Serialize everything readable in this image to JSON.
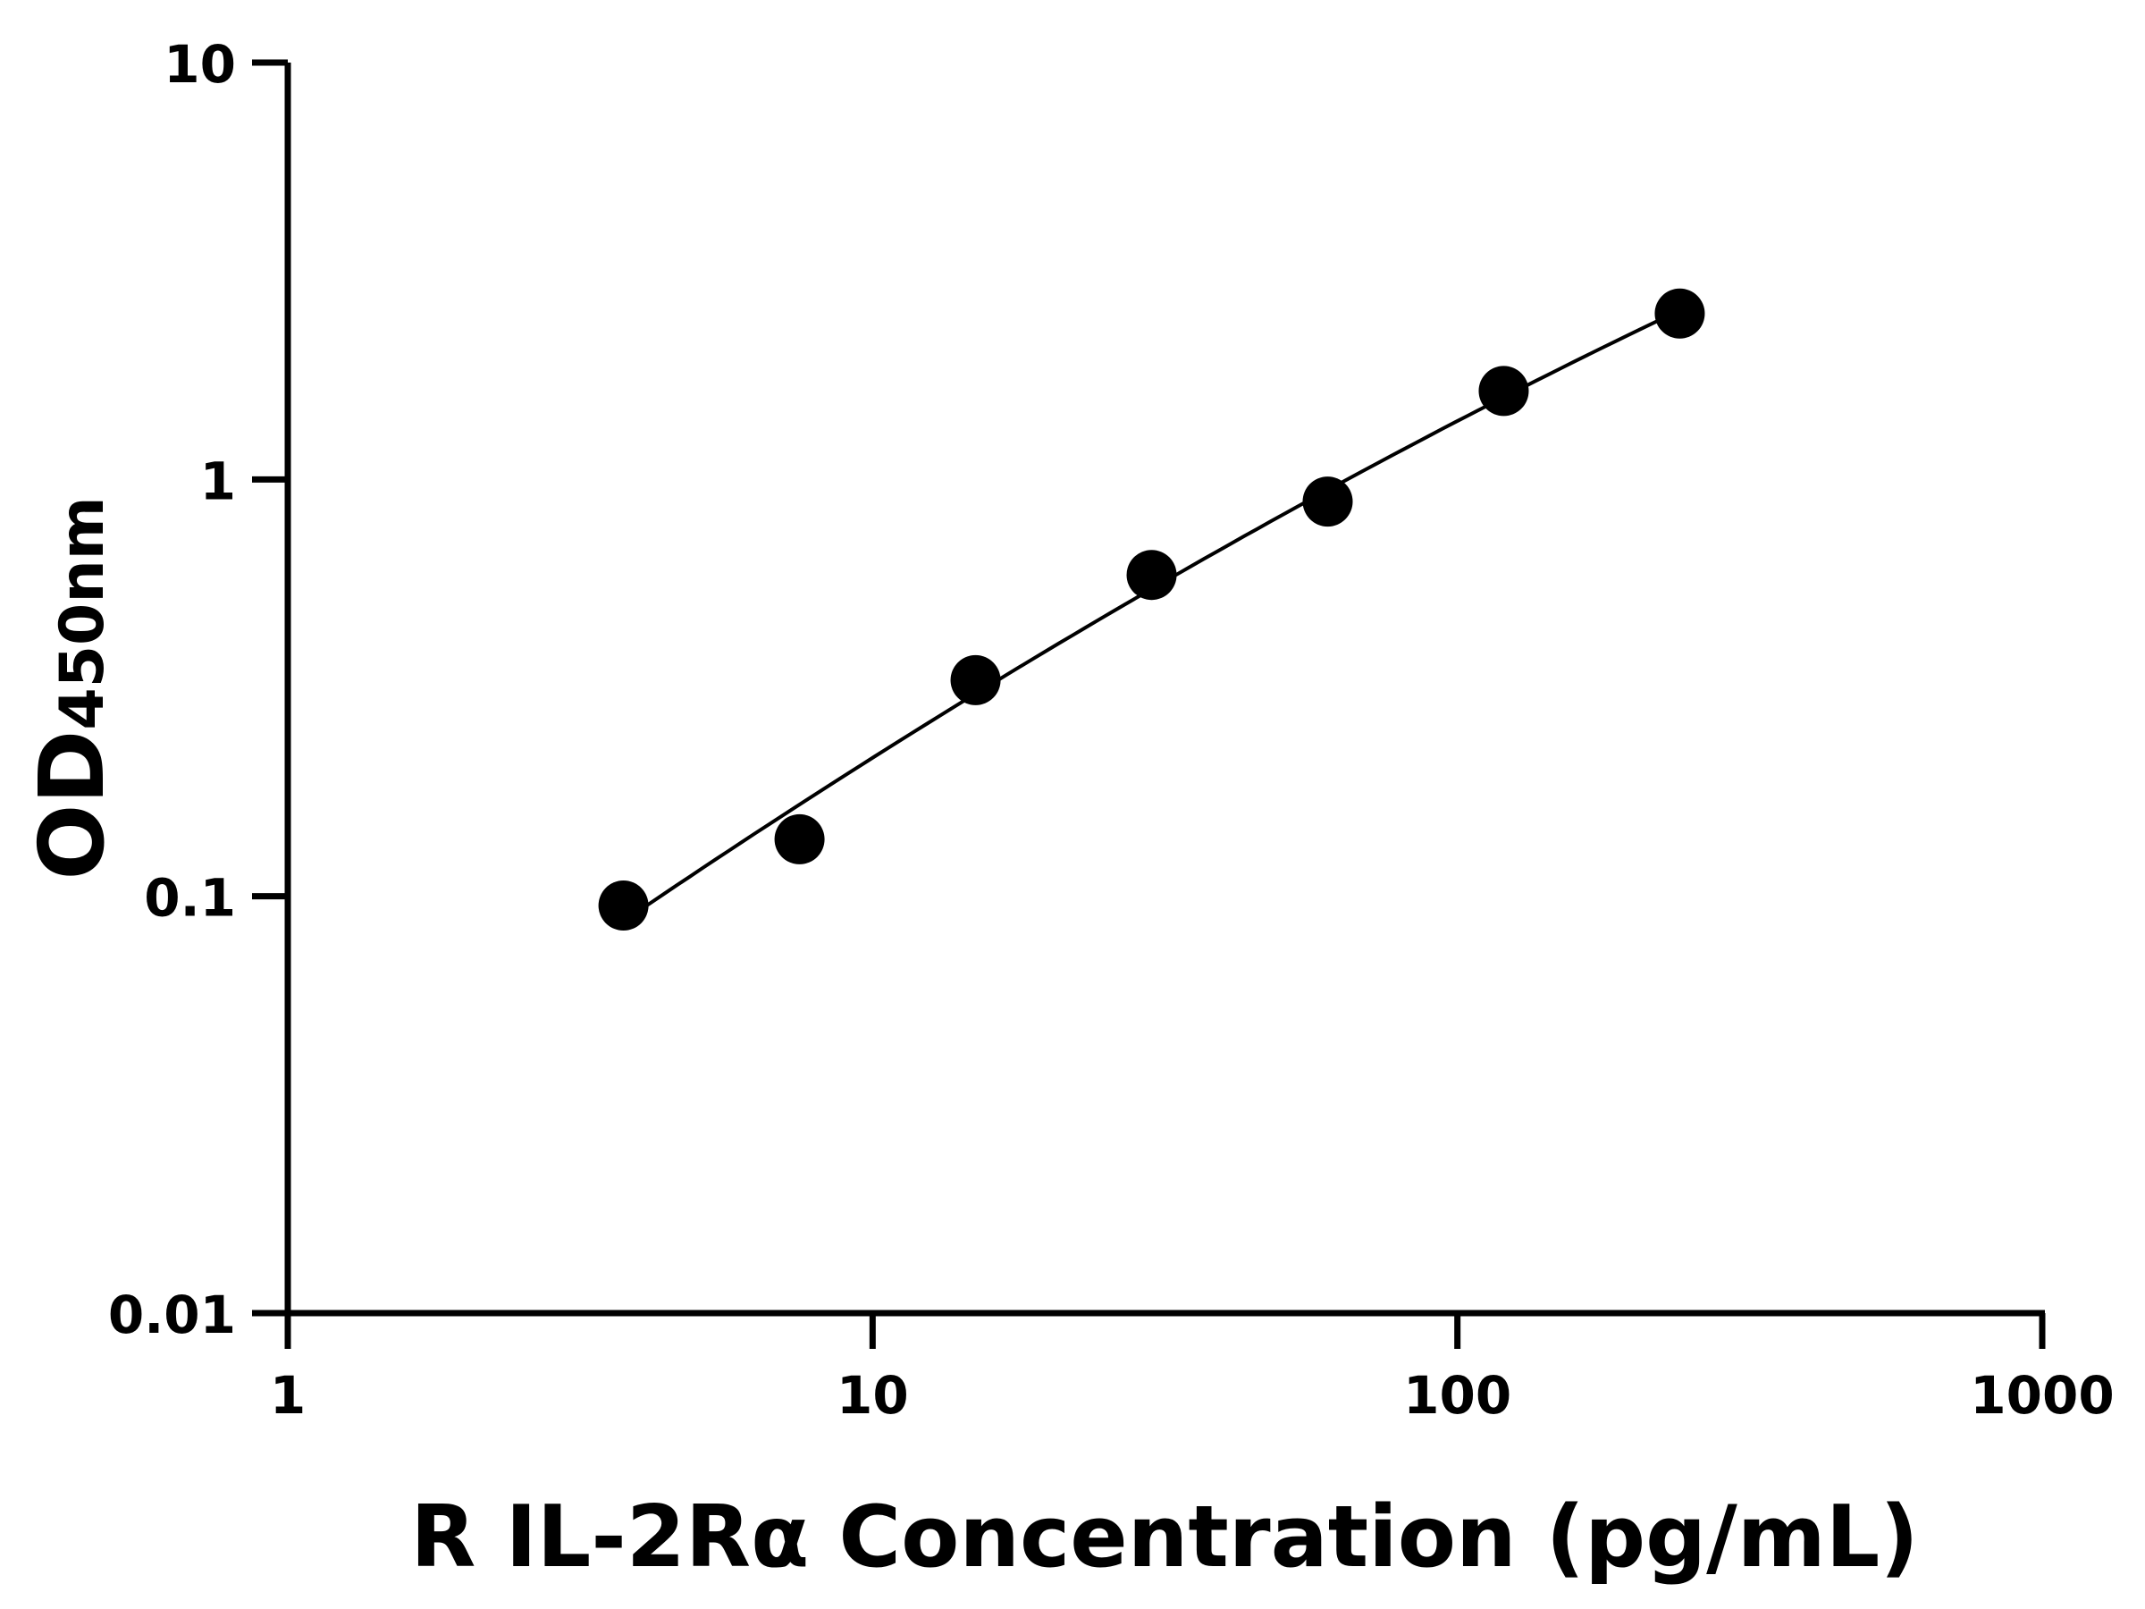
{
  "chart_data": {
    "type": "scatter",
    "title": "",
    "xlabel": "R IL-2Rα Concentration (pg/mL)",
    "ylabel": "OD",
    "ylabel_subscript": "450nm",
    "xscale": "log",
    "yscale": "log",
    "xlim": [
      1,
      1000
    ],
    "ylim": [
      0.01,
      10
    ],
    "xticks": [
      "1",
      "10",
      "100",
      "1000"
    ],
    "yticks": [
      "0.01",
      "0.1",
      "1",
      "10"
    ],
    "grid": false,
    "fit_line": true,
    "point_color": "#000000",
    "line_color": "#000000",
    "series": [
      {
        "x": [
          3.75,
          7.5,
          15,
          30,
          60,
          120,
          240
        ],
        "y": [
          0.095,
          0.137,
          0.33,
          0.59,
          0.885,
          1.63,
          2.5
        ]
      }
    ]
  }
}
